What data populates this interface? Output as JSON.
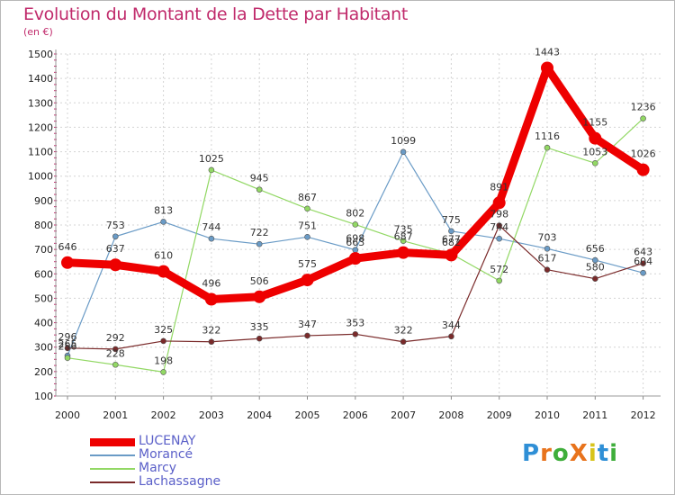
{
  "header": {
    "title": "Evolution du Montant de la Dette par Habitant",
    "unit": "(en €)"
  },
  "brand": {
    "name": "Proxiti",
    "letters": [
      {
        "ch": "P",
        "color": "#2f8fd6"
      },
      {
        "ch": "r",
        "color": "#e8731c"
      },
      {
        "ch": "o",
        "color": "#3fae3b"
      },
      {
        "ch": "X",
        "color": "#e8731c"
      },
      {
        "ch": "i",
        "color": "#d8c41c"
      },
      {
        "ch": "t",
        "color": "#2f8fd6"
      },
      {
        "ch": "i",
        "color": "#3fae3b"
      }
    ]
  },
  "chart_data": {
    "type": "line",
    "x": [
      "2000",
      "2001",
      "2002",
      "2003",
      "2004",
      "2005",
      "2006",
      "2007",
      "2008",
      "2009",
      "2010",
      "2011",
      "2012"
    ],
    "ylim": [
      100,
      1500
    ],
    "yticks": [
      100,
      200,
      300,
      400,
      500,
      600,
      700,
      800,
      900,
      1000,
      1100,
      1200,
      1300,
      1400,
      1500
    ],
    "grid": true,
    "legend_position": "bottom-left",
    "series": [
      {
        "name": "LUCENAY",
        "color": "#ee0000",
        "width": 9,
        "values": [
          646,
          637,
          610,
          496,
          506,
          575,
          663,
          687,
          677,
          891,
          1443,
          1155,
          1026
        ]
      },
      {
        "name": "Morancé",
        "color": "#6a9bc6",
        "width": 1.2,
        "values": [
          265,
          753,
          813,
          744,
          722,
          751,
          698,
          1099,
          775,
          744,
          703,
          656,
          604
        ]
      },
      {
        "name": "Marcy",
        "color": "#92d864",
        "width": 1.2,
        "values": [
          256,
          228,
          198,
          1025,
          945,
          867,
          802,
          735,
          682,
          572,
          1116,
          1053,
          1236
        ]
      },
      {
        "name": "Lachassagne",
        "color": "#7a2a2a",
        "width": 1.2,
        "values": [
          296,
          292,
          325,
          322,
          335,
          347,
          353,
          322,
          344,
          798,
          617,
          580,
          643
        ]
      }
    ]
  }
}
